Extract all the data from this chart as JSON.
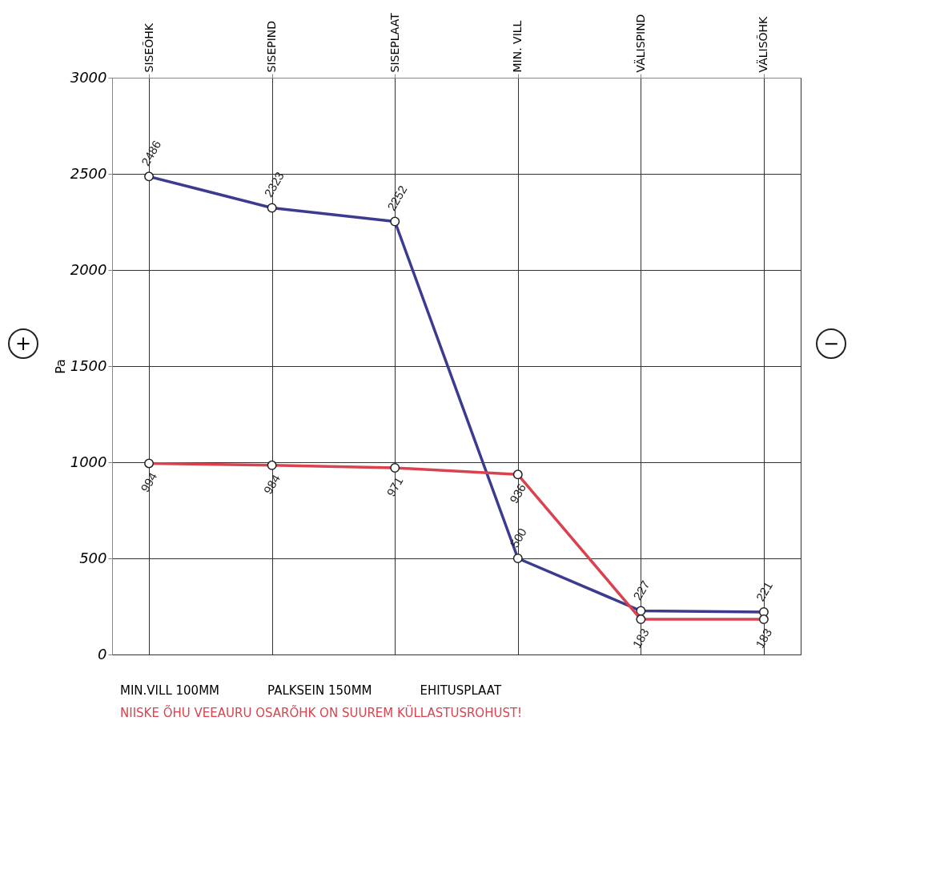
{
  "chart_data": {
    "type": "line",
    "ylabel": "Pa",
    "categories": [
      "SISEÕHK",
      "SISEPIND",
      "SISEPLAAT",
      "MIN. VILL",
      "VÄLISPIND",
      "VÄLISÕHK"
    ],
    "series": [
      {
        "color": "#3b3b8f",
        "values": [
          2486,
          2323,
          2252,
          500,
          227,
          221
        ]
      },
      {
        "color": "#d9434f",
        "values": [
          994,
          984,
          971,
          936,
          183,
          183
        ]
      }
    ],
    "ylim": [
      0,
      3000
    ],
    "yticks": [
      0,
      500,
      1000,
      1500,
      2000,
      2500,
      3000
    ],
    "grid": true,
    "marker": "circle",
    "line_style": "solid",
    "data_labels": true,
    "annotations": [
      "+",
      "−",
      "MIN.VILL 100MM",
      "PALKSEIN 150MM",
      "EHITUSPLAAT",
      "NIISKE ÕHU VEEAURU OSARÕHK ON SUUREM KÜLLASTUSROHUST!"
    ]
  }
}
